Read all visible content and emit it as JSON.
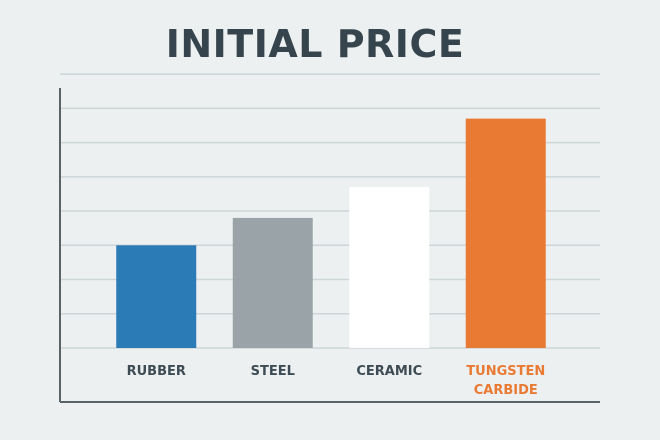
{
  "chart_data": {
    "type": "bar",
    "title": "INITIAL PRICE",
    "xlabel": "",
    "ylabel": "",
    "categories": [
      "RUBBER",
      "STEEL",
      "CERAMIC",
      "TUNGSTEN CARBIDE"
    ],
    "category_lines": [
      [
        "RUBBER"
      ],
      [
        "STEEL"
      ],
      [
        "CERAMIC"
      ],
      [
        "TUNGSTEN",
        "CARBIDE"
      ]
    ],
    "values": [
      3,
      3.8,
      4.7,
      6.7
    ],
    "ylim": [
      0,
      8.5
    ],
    "y_tick_step": 1,
    "y_tick_labels_shown": false,
    "grid": true,
    "legend": "none",
    "bar_colors": [
      "#2b7bb6",
      "#9aa4a8",
      "#ffffff",
      "#e97a33"
    ],
    "label_colors": [
      "#3d4c54",
      "#3d4c54",
      "#3d4c54",
      "#e97a33"
    ],
    "grid_color": "#cdd5d8",
    "axis_color": "#5a6468"
  }
}
